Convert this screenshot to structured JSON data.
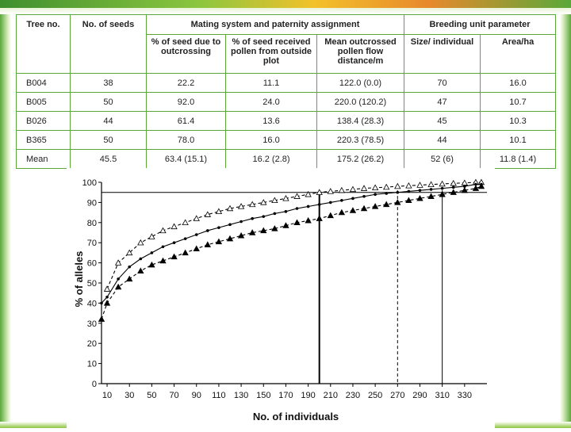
{
  "colors": {
    "border": "#5aa83a",
    "accent": "#3f8f2f"
  },
  "table": {
    "head": {
      "tree_no": "Tree no.",
      "no_seeds": "No. of seeds",
      "group_mating": "Mating system and paternity assignment",
      "group_breeding": "Breeding unit parameter",
      "col_outcross": "% of seed due to outcrossing",
      "col_outside": "% of seed received pollen from outside plot",
      "col_flow": "Mean outcrossed pollen flow distance/m",
      "col_size": "Size/ individual",
      "col_area": "Area/ha"
    },
    "rows": [
      {
        "tree": "B004",
        "seeds": "38",
        "outcross": "22.2",
        "outside": "11.1",
        "flow": "122.0 (0.0)",
        "size": "70",
        "area": "16.0"
      },
      {
        "tree": "B005",
        "seeds": "50",
        "outcross": "92.0",
        "outside": "24.0",
        "flow": "220.0 (120.2)",
        "size": "47",
        "area": "10.7"
      },
      {
        "tree": "B026",
        "seeds": "44",
        "outcross": "61.4",
        "outside": "13.6",
        "flow": "138.4 (28.3)",
        "size": "45",
        "area": "10.3"
      },
      {
        "tree": "B365",
        "seeds": "50",
        "outcross": "78.0",
        "outside": "16.0",
        "flow": "220.3 (78.5)",
        "size": "44",
        "area": "10.1"
      },
      {
        "tree": "Mean",
        "seeds": "45.5",
        "outcross": "63.4 (15.1)",
        "outside": "16.2 (2.8)",
        "flow": "175.2 (26.2)",
        "size": "52 (6)",
        "area": "11.8 (1.4)"
      }
    ]
  },
  "chart_data": {
    "type": "line",
    "title": "",
    "xlabel": "No. of individuals",
    "ylabel": "% of alleles",
    "xlim": [
      5,
      350
    ],
    "ylim": [
      0,
      100
    ],
    "xticks": [
      10,
      30,
      50,
      70,
      90,
      110,
      130,
      150,
      170,
      190,
      210,
      230,
      250,
      270,
      290,
      310,
      330
    ],
    "yticks": [
      0,
      10,
      20,
      30,
      40,
      50,
      60,
      70,
      80,
      90,
      100
    ],
    "series": [
      {
        "name": "upper (open triangles)",
        "style": "dashed",
        "marker": "open-triangle",
        "x": [
          10,
          20,
          30,
          40,
          50,
          60,
          70,
          80,
          90,
          100,
          110,
          120,
          130,
          140,
          150,
          160,
          170,
          180,
          190,
          200,
          210,
          220,
          230,
          240,
          250,
          260,
          270,
          280,
          290,
          300,
          310,
          320,
          330,
          340,
          345
        ],
        "values": [
          47,
          60,
          65,
          70,
          73,
          76,
          78,
          80,
          82,
          84,
          85.5,
          87,
          88,
          89,
          90,
          91,
          92,
          93,
          94,
          95,
          95.5,
          96,
          96.5,
          97,
          97.3,
          97.6,
          98,
          98.3,
          98.6,
          98.9,
          99.2,
          99.5,
          99.7,
          100,
          100
        ]
      },
      {
        "name": "mean (dots)",
        "style": "solid",
        "marker": "dot",
        "x": [
          5,
          10,
          20,
          30,
          40,
          50,
          60,
          70,
          80,
          90,
          100,
          110,
          120,
          130,
          140,
          150,
          160,
          170,
          180,
          190,
          200,
          210,
          220,
          230,
          240,
          250,
          260,
          270,
          280,
          290,
          300,
          310,
          320,
          330,
          340,
          345
        ],
        "values": [
          40,
          43,
          52,
          58,
          62,
          65,
          68,
          70,
          72,
          74,
          76,
          77.5,
          79,
          80.5,
          82,
          83,
          84.5,
          85.5,
          87,
          88,
          89,
          90,
          91,
          92,
          93,
          94,
          94.5,
          95,
          95.5,
          96,
          96.5,
          97,
          97.5,
          98,
          99,
          99
        ]
      },
      {
        "name": "lower (filled triangles)",
        "style": "dashed",
        "marker": "filled-triangle",
        "x": [
          5,
          10,
          20,
          30,
          40,
          50,
          60,
          70,
          80,
          90,
          100,
          110,
          120,
          130,
          140,
          150,
          160,
          170,
          180,
          190,
          200,
          210,
          220,
          230,
          240,
          250,
          260,
          270,
          280,
          290,
          300,
          310,
          320,
          330,
          340,
          345
        ],
        "values": [
          32,
          40,
          48,
          52,
          56,
          59,
          61,
          63,
          65,
          67,
          69,
          70.5,
          72,
          73.5,
          75,
          76,
          77,
          78.5,
          80,
          81,
          82,
          83.5,
          85,
          86,
          87,
          88,
          89,
          90,
          91,
          92,
          93,
          94,
          95,
          96,
          97,
          98
        ]
      }
    ],
    "reference_lines": [
      {
        "axis": "y",
        "value": 95,
        "style": "solid"
      },
      {
        "axis": "x",
        "value": 200,
        "style": "solid-thick"
      },
      {
        "axis": "x",
        "value": 270,
        "style": "dashed"
      },
      {
        "axis": "x",
        "value": 310,
        "style": "solid"
      }
    ]
  }
}
